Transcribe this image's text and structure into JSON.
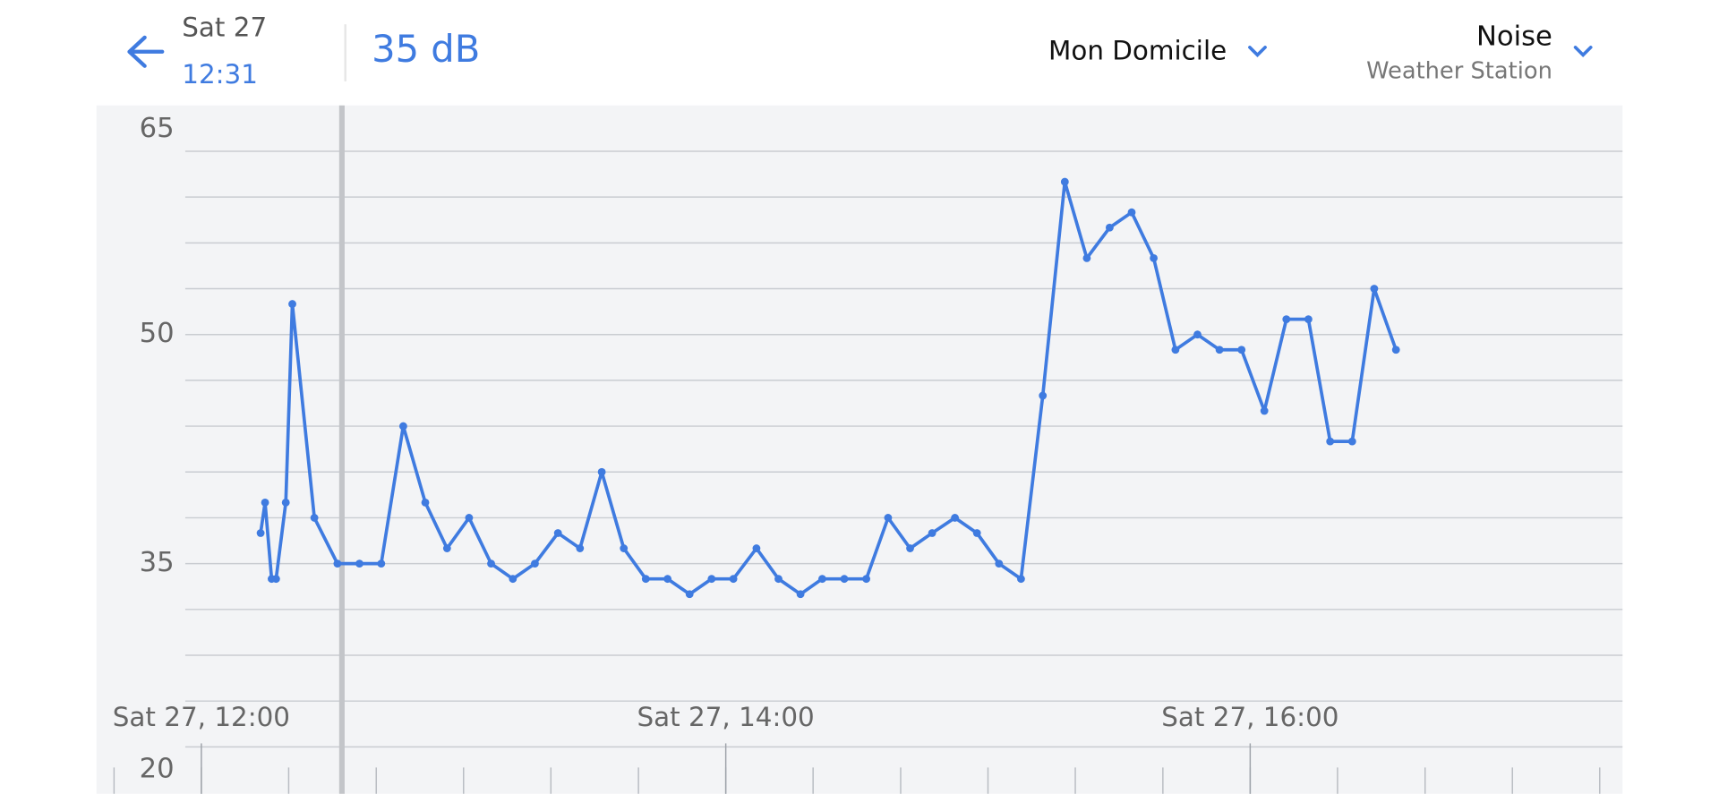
{
  "header": {
    "date": "Sat 27",
    "time": "12:31",
    "reading": "35 dB",
    "location": "Mon Domicile",
    "metric": "Noise",
    "device": "Weather Station"
  },
  "chart_data": {
    "type": "line",
    "color": "#3f7be0",
    "grid": true,
    "xlim": [
      11.6,
      17.42
    ],
    "ylim": [
      20,
      65
    ],
    "yticks": [
      20,
      35,
      50,
      65
    ],
    "yticks_minor": [
      20,
      23,
      26,
      29,
      32,
      35,
      38,
      41,
      44,
      47,
      50,
      53,
      56,
      59,
      62,
      65
    ],
    "xticks": [
      {
        "value": 12,
        "label": "Sat 27, 12:00"
      },
      {
        "value": 14,
        "label": "Sat 27, 14:00"
      },
      {
        "value": 16,
        "label": "Sat 27, 16:00"
      }
    ],
    "xticks_minor": [
      11.667,
      12,
      12.333,
      12.667,
      13,
      13.333,
      13.667,
      14,
      14.333,
      14.667,
      15,
      15.333,
      15.667,
      16,
      16.333,
      16.667,
      17,
      17.333
    ],
    "cursor": 12.536,
    "x": [
      12.226,
      12.243,
      12.268,
      12.285,
      12.322,
      12.347,
      12.431,
      12.519,
      12.603,
      12.686,
      12.77,
      12.854,
      12.937,
      13.021,
      13.105,
      13.188,
      13.272,
      13.36,
      13.444,
      13.527,
      13.611,
      13.695,
      13.778,
      13.862,
      13.946,
      14.029,
      14.117,
      14.201,
      14.285,
      14.368,
      14.452,
      14.536,
      14.619,
      14.703,
      14.787,
      14.874,
      14.958,
      15.042,
      15.126,
      15.209,
      15.293,
      15.377,
      15.464,
      15.548,
      15.632,
      15.715,
      15.799,
      15.883,
      15.967,
      16.054,
      16.138,
      16.222,
      16.305,
      16.389,
      16.473,
      16.556
    ],
    "series": [
      {
        "name": "Noise",
        "color": "#3f7be0",
        "values": [
          37,
          39,
          34,
          34,
          39,
          52,
          38,
          35,
          35,
          35,
          44,
          39,
          36,
          38,
          35,
          34,
          35,
          37,
          36,
          41,
          36,
          34,
          34,
          33,
          34,
          34,
          36,
          34,
          33,
          34,
          34,
          34,
          38,
          36,
          37,
          38,
          37,
          35,
          34,
          46,
          60,
          55,
          57,
          58,
          55,
          49,
          50,
          49,
          49,
          45,
          51,
          51,
          43,
          43,
          53,
          49
        ]
      }
    ]
  }
}
